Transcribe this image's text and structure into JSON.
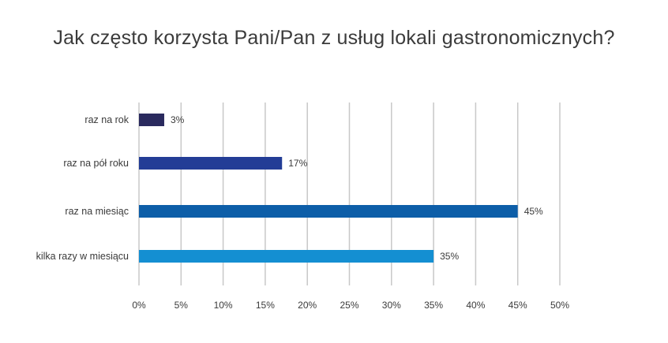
{
  "chart_data": {
    "type": "bar",
    "orientation": "horizontal",
    "title": "Jak często korzysta Pani/Pan z usług lokali gastronomicznych?",
    "xlabel": "",
    "ylabel": "",
    "categories": [
      "raz na rok",
      "raz na pół roku",
      "raz na miesiąc",
      "kilka razy w miesiącu"
    ],
    "values": [
      3,
      17,
      45,
      35
    ],
    "value_labels": [
      "3%",
      "17%",
      "45%",
      "35%"
    ],
    "bar_colors": [
      "#2a2a5e",
      "#233d96",
      "#0d5ea8",
      "#148fd2"
    ],
    "xlim": [
      0,
      50
    ],
    "x_ticks": [
      0,
      5,
      10,
      15,
      20,
      25,
      30,
      35,
      40,
      45,
      50
    ],
    "x_tick_labels": [
      "0%",
      "5%",
      "10%",
      "15%",
      "20%",
      "25%",
      "30%",
      "35%",
      "40%",
      "45%",
      "50%"
    ],
    "grid": true,
    "gridline_color": "#c8c8c8",
    "legend": false
  }
}
